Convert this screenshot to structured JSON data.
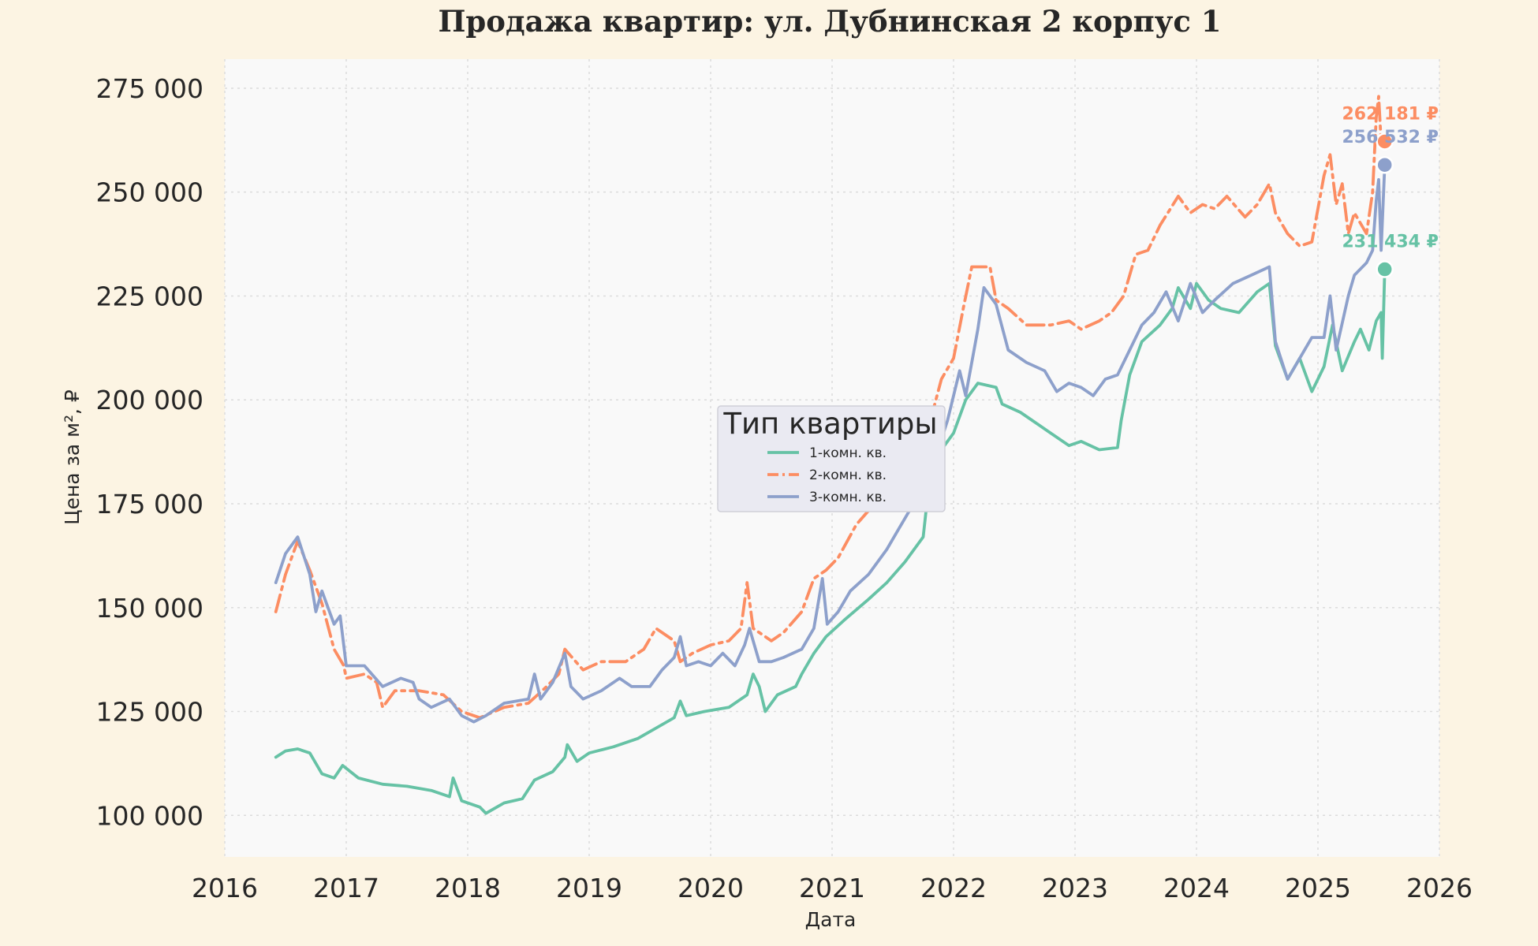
{
  "chart_data": {
    "type": "line",
    "title": "Продажа квартир: ул. Дубнинская 2 корпус 1",
    "xlabel": "Дата",
    "ylabel": "Цена за м², ₽",
    "xlim": [
      2016,
      2026
    ],
    "ylim": [
      90000,
      282000
    ],
    "x_ticks": [
      2016,
      2017,
      2018,
      2019,
      2020,
      2021,
      2022,
      2023,
      2024,
      2025,
      2026
    ],
    "y_ticks": [
      100000,
      125000,
      150000,
      175000,
      200000,
      225000,
      250000,
      275000
    ],
    "y_tick_labels": [
      "100 000",
      "125 000",
      "150 000",
      "175 000",
      "200 000",
      "225 000",
      "250 000",
      "275 000"
    ],
    "grid": true,
    "legend": {
      "title": "Тип квартиры",
      "position": "center"
    },
    "series": [
      {
        "name": "1-комн. кв.",
        "color": "#66c2a5",
        "style": "solid-dotted",
        "end_label": "231 434 ₽",
        "end_point": [
          2025.55,
          231434
        ],
        "points": [
          [
            2016.42,
            114000
          ],
          [
            2016.5,
            115500
          ],
          [
            2016.6,
            116000
          ],
          [
            2016.7,
            115000
          ],
          [
            2016.8,
            110000
          ],
          [
            2016.9,
            109000
          ],
          [
            2016.97,
            112000
          ],
          [
            2017.1,
            109000
          ],
          [
            2017.3,
            107500
          ],
          [
            2017.5,
            107000
          ],
          [
            2017.7,
            106000
          ],
          [
            2017.85,
            104500
          ],
          [
            2017.88,
            109000
          ],
          [
            2017.95,
            103500
          ],
          [
            2018.1,
            102000
          ],
          [
            2018.15,
            100500
          ],
          [
            2018.3,
            103000
          ],
          [
            2018.45,
            104000
          ],
          [
            2018.55,
            108500
          ],
          [
            2018.7,
            110500
          ],
          [
            2018.8,
            114000
          ],
          [
            2018.82,
            117000
          ],
          [
            2018.9,
            113000
          ],
          [
            2019.0,
            115000
          ],
          [
            2019.2,
            116500
          ],
          [
            2019.4,
            118500
          ],
          [
            2019.55,
            121000
          ],
          [
            2019.7,
            123500
          ],
          [
            2019.75,
            127500
          ],
          [
            2019.8,
            124000
          ],
          [
            2019.95,
            125000
          ],
          [
            2020.15,
            126000
          ],
          [
            2020.3,
            129000
          ],
          [
            2020.35,
            134000
          ],
          [
            2020.4,
            131000
          ],
          [
            2020.45,
            125000
          ],
          [
            2020.55,
            129000
          ],
          [
            2020.7,
            131000
          ],
          [
            2020.75,
            134000
          ],
          [
            2020.85,
            139000
          ],
          [
            2020.95,
            143000
          ],
          [
            2021.1,
            147000
          ],
          [
            2021.3,
            152000
          ],
          [
            2021.45,
            156000
          ],
          [
            2021.6,
            161000
          ],
          [
            2021.75,
            167000
          ],
          [
            2021.78,
            175000
          ],
          [
            2021.82,
            182000
          ],
          [
            2021.9,
            188000
          ],
          [
            2022.0,
            192000
          ],
          [
            2022.1,
            200000
          ],
          [
            2022.2,
            204000
          ],
          [
            2022.35,
            203000
          ],
          [
            2022.4,
            199000
          ],
          [
            2022.55,
            197000
          ],
          [
            2022.7,
            194000
          ],
          [
            2022.8,
            192000
          ],
          [
            2022.95,
            189000
          ],
          [
            2023.05,
            190000
          ],
          [
            2023.2,
            188000
          ],
          [
            2023.35,
            188500
          ],
          [
            2023.38,
            195000
          ],
          [
            2023.45,
            206000
          ],
          [
            2023.55,
            214000
          ],
          [
            2023.7,
            218000
          ],
          [
            2023.8,
            222000
          ],
          [
            2023.85,
            227000
          ],
          [
            2023.95,
            222000
          ],
          [
            2024.0,
            228000
          ],
          [
            2024.1,
            224000
          ],
          [
            2024.2,
            222000
          ],
          [
            2024.35,
            221000
          ],
          [
            2024.5,
            226000
          ],
          [
            2024.6,
            228000
          ],
          [
            2024.65,
            213000
          ],
          [
            2024.75,
            205000
          ],
          [
            2024.85,
            210000
          ],
          [
            2024.95,
            202000
          ],
          [
            2025.05,
            208000
          ],
          [
            2025.12,
            218000
          ],
          [
            2025.2,
            207000
          ],
          [
            2025.3,
            214000
          ],
          [
            2025.35,
            217000
          ],
          [
            2025.42,
            212000
          ],
          [
            2025.48,
            219000
          ],
          [
            2025.52,
            221000
          ],
          [
            2025.53,
            210000
          ],
          [
            2025.55,
            231434
          ]
        ]
      },
      {
        "name": "2-комн. кв.",
        "color": "#fc8d62",
        "style": "dash-dot",
        "end_label": "262 181 ₽",
        "end_point": [
          2025.55,
          262181
        ],
        "points": [
          [
            2016.42,
            149000
          ],
          [
            2016.5,
            158000
          ],
          [
            2016.6,
            166000
          ],
          [
            2016.7,
            159000
          ],
          [
            2016.8,
            151000
          ],
          [
            2016.9,
            140000
          ],
          [
            2016.98,
            136000
          ],
          [
            2017.0,
            133000
          ],
          [
            2017.15,
            134000
          ],
          [
            2017.25,
            132000
          ],
          [
            2017.3,
            126000
          ],
          [
            2017.4,
            130000
          ],
          [
            2017.6,
            130000
          ],
          [
            2017.8,
            129000
          ],
          [
            2017.95,
            125000
          ],
          [
            2018.1,
            123500
          ],
          [
            2018.3,
            126000
          ],
          [
            2018.5,
            127000
          ],
          [
            2018.65,
            131000
          ],
          [
            2018.75,
            134000
          ],
          [
            2018.8,
            140000
          ],
          [
            2018.95,
            135000
          ],
          [
            2019.1,
            137000
          ],
          [
            2019.3,
            137000
          ],
          [
            2019.45,
            140000
          ],
          [
            2019.55,
            145000
          ],
          [
            2019.7,
            142000
          ],
          [
            2019.75,
            137000
          ],
          [
            2019.85,
            139000
          ],
          [
            2020.0,
            141000
          ],
          [
            2020.15,
            142000
          ],
          [
            2020.25,
            145000
          ],
          [
            2020.3,
            156000
          ],
          [
            2020.35,
            145000
          ],
          [
            2020.5,
            142000
          ],
          [
            2020.6,
            144000
          ],
          [
            2020.75,
            149000
          ],
          [
            2020.85,
            157000
          ],
          [
            2020.95,
            159000
          ],
          [
            2021.05,
            162000
          ],
          [
            2021.2,
            170000
          ],
          [
            2021.35,
            175000
          ],
          [
            2021.55,
            180000
          ],
          [
            2021.65,
            186000
          ],
          [
            2021.8,
            194000
          ],
          [
            2021.9,
            205000
          ],
          [
            2022.0,
            210000
          ],
          [
            2022.08,
            222000
          ],
          [
            2022.15,
            232000
          ],
          [
            2022.3,
            232000
          ],
          [
            2022.35,
            224000
          ],
          [
            2022.45,
            222000
          ],
          [
            2022.6,
            218000
          ],
          [
            2022.8,
            218000
          ],
          [
            2022.95,
            219000
          ],
          [
            2023.05,
            217000
          ],
          [
            2023.2,
            219000
          ],
          [
            2023.3,
            221000
          ],
          [
            2023.4,
            225000
          ],
          [
            2023.5,
            235000
          ],
          [
            2023.6,
            236000
          ],
          [
            2023.7,
            242000
          ],
          [
            2023.85,
            249000
          ],
          [
            2023.95,
            245000
          ],
          [
            2024.05,
            247000
          ],
          [
            2024.15,
            246000
          ],
          [
            2024.25,
            249000
          ],
          [
            2024.4,
            244000
          ],
          [
            2024.5,
            247000
          ],
          [
            2024.6,
            252000
          ],
          [
            2024.65,
            245000
          ],
          [
            2024.75,
            240000
          ],
          [
            2024.85,
            237000
          ],
          [
            2024.95,
            238000
          ],
          [
            2025.05,
            254000
          ],
          [
            2025.1,
            259000
          ],
          [
            2025.15,
            247000
          ],
          [
            2025.2,
            252000
          ],
          [
            2025.25,
            240000
          ],
          [
            2025.3,
            245000
          ],
          [
            2025.4,
            240000
          ],
          [
            2025.45,
            250000
          ],
          [
            2025.48,
            268000
          ],
          [
            2025.5,
            273000
          ],
          [
            2025.52,
            262000
          ],
          [
            2025.55,
            262181
          ]
        ]
      },
      {
        "name": "3-комн. кв.",
        "color": "#8da0cb",
        "style": "solid",
        "end_label": "256 532 ₽",
        "end_point": [
          2025.55,
          256532
        ],
        "points": [
          [
            2016.42,
            156000
          ],
          [
            2016.5,
            163000
          ],
          [
            2016.6,
            167000
          ],
          [
            2016.7,
            158000
          ],
          [
            2016.75,
            149000
          ],
          [
            2016.8,
            154000
          ],
          [
            2016.85,
            150000
          ],
          [
            2016.9,
            146000
          ],
          [
            2016.95,
            148000
          ],
          [
            2017.0,
            136000
          ],
          [
            2017.15,
            136000
          ],
          [
            2017.3,
            131000
          ],
          [
            2017.45,
            133000
          ],
          [
            2017.55,
            132000
          ],
          [
            2017.6,
            128000
          ],
          [
            2017.7,
            126000
          ],
          [
            2017.85,
            128000
          ],
          [
            2017.95,
            124000
          ],
          [
            2018.05,
            122500
          ],
          [
            2018.15,
            124000
          ],
          [
            2018.3,
            127000
          ],
          [
            2018.5,
            128000
          ],
          [
            2018.55,
            134000
          ],
          [
            2018.6,
            128000
          ],
          [
            2018.7,
            132000
          ],
          [
            2018.8,
            139000
          ],
          [
            2018.85,
            131000
          ],
          [
            2018.95,
            128000
          ],
          [
            2019.1,
            130000
          ],
          [
            2019.25,
            133000
          ],
          [
            2019.35,
            131000
          ],
          [
            2019.5,
            131000
          ],
          [
            2019.6,
            135000
          ],
          [
            2019.7,
            138000
          ],
          [
            2019.75,
            143000
          ],
          [
            2019.8,
            136000
          ],
          [
            2019.9,
            137000
          ],
          [
            2020.0,
            136000
          ],
          [
            2020.1,
            139000
          ],
          [
            2020.2,
            136000
          ],
          [
            2020.28,
            141000
          ],
          [
            2020.32,
            145000
          ],
          [
            2020.4,
            137000
          ],
          [
            2020.5,
            137000
          ],
          [
            2020.6,
            138000
          ],
          [
            2020.75,
            140000
          ],
          [
            2020.85,
            145000
          ],
          [
            2020.92,
            157000
          ],
          [
            2020.96,
            146000
          ],
          [
            2021.05,
            149000
          ],
          [
            2021.15,
            154000
          ],
          [
            2021.3,
            158000
          ],
          [
            2021.45,
            164000
          ],
          [
            2021.55,
            169000
          ],
          [
            2021.65,
            174000
          ],
          [
            2021.75,
            178000
          ],
          [
            2021.85,
            186000
          ],
          [
            2021.95,
            195000
          ],
          [
            2022.05,
            207000
          ],
          [
            2022.1,
            201000
          ],
          [
            2022.2,
            217000
          ],
          [
            2022.25,
            227000
          ],
          [
            2022.35,
            223000
          ],
          [
            2022.45,
            212000
          ],
          [
            2022.6,
            209000
          ],
          [
            2022.75,
            207000
          ],
          [
            2022.85,
            202000
          ],
          [
            2022.95,
            204000
          ],
          [
            2023.05,
            203000
          ],
          [
            2023.15,
            201000
          ],
          [
            2023.25,
            205000
          ],
          [
            2023.35,
            206000
          ],
          [
            2023.45,
            212000
          ],
          [
            2023.55,
            218000
          ],
          [
            2023.65,
            221000
          ],
          [
            2023.75,
            226000
          ],
          [
            2023.85,
            219000
          ],
          [
            2023.95,
            228000
          ],
          [
            2024.05,
            221000
          ],
          [
            2024.15,
            224000
          ],
          [
            2024.3,
            228000
          ],
          [
            2024.45,
            230000
          ],
          [
            2024.6,
            232000
          ],
          [
            2024.65,
            214000
          ],
          [
            2024.75,
            205000
          ],
          [
            2024.85,
            210000
          ],
          [
            2024.95,
            215000
          ],
          [
            2025.05,
            215000
          ],
          [
            2025.1,
            225000
          ],
          [
            2025.15,
            212000
          ],
          [
            2025.25,
            225000
          ],
          [
            2025.3,
            230000
          ],
          [
            2025.4,
            233000
          ],
          [
            2025.45,
            236000
          ],
          [
            2025.48,
            248000
          ],
          [
            2025.5,
            253000
          ],
          [
            2025.52,
            236000
          ],
          [
            2025.55,
            256532
          ]
        ]
      }
    ]
  }
}
